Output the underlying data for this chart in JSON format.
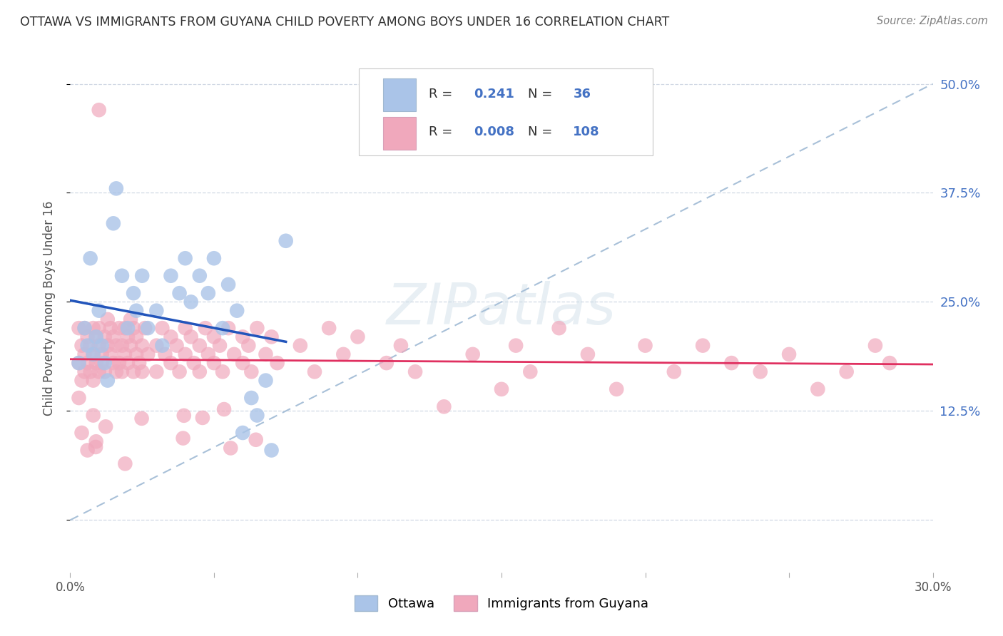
{
  "title": "OTTAWA VS IMMIGRANTS FROM GUYANA CHILD POVERTY AMONG BOYS UNDER 16 CORRELATION CHART",
  "source": "Source: ZipAtlas.com",
  "ylabel": "Child Poverty Among Boys Under 16",
  "xlim": [
    0.0,
    0.3
  ],
  "ylim": [
    -0.06,
    0.545
  ],
  "yticks": [
    0.0,
    0.125,
    0.25,
    0.375,
    0.5
  ],
  "ytick_labels_right": [
    "",
    "12.5%",
    "25.0%",
    "37.5%",
    "50.0%"
  ],
  "xticks": [
    0.0,
    0.05,
    0.1,
    0.15,
    0.2,
    0.25,
    0.3
  ],
  "xtick_labels": [
    "0.0%",
    "",
    "",
    "",
    "",
    "",
    "30.0%"
  ],
  "background_color": "#ffffff",
  "watermark_text": "ZIPatlas",
  "legend_R_ottawa": "0.241",
  "legend_N_ottawa": "36",
  "legend_R_immigrants": "0.008",
  "legend_N_immigrants": "108",
  "ottawa_color": "#aac4e8",
  "immigrants_color": "#f0a8bc",
  "trend_ottawa_color": "#2255bb",
  "trend_immigrants_color": "#e03060",
  "trend_dashed_color": "#a8c0d8",
  "grid_color": "#d0d8e4",
  "tick_label_color": "#4472c4",
  "axis_label_color": "#505050",
  "title_color": "#303030",
  "source_color": "#808080"
}
